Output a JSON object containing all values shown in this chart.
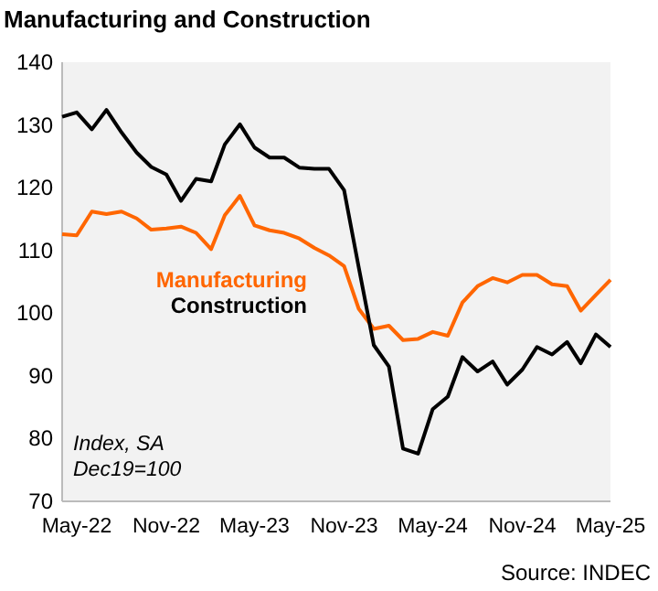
{
  "chart_data": {
    "type": "line",
    "title": "Manufacturing and Construction",
    "x": [
      "2022-04",
      "2022-05",
      "2022-06",
      "2022-07",
      "2022-08",
      "2022-09",
      "2022-10",
      "2022-11",
      "2022-12",
      "2023-01",
      "2023-02",
      "2023-03",
      "2023-04",
      "2023-05",
      "2023-06",
      "2023-07",
      "2023-08",
      "2023-09",
      "2023-10",
      "2023-11",
      "2023-12",
      "2024-01",
      "2024-02",
      "2024-03",
      "2024-04",
      "2024-05",
      "2024-06",
      "2024-07",
      "2024-08",
      "2024-09",
      "2024-10",
      "2024-11",
      "2024-12",
      "2025-01",
      "2025-02",
      "2025-03",
      "2025-04",
      "2025-05"
    ],
    "series": [
      {
        "name": "Manufacturing",
        "color": "#ff6600",
        "values": [
          112.6,
          112.4,
          116.2,
          115.8,
          116.2,
          115.1,
          113.3,
          113.5,
          113.8,
          112.8,
          110.2,
          115.6,
          118.7,
          114.0,
          113.2,
          112.8,
          111.9,
          110.4,
          109.2,
          107.5,
          100.7,
          97.5,
          98.0,
          95.7,
          95.9,
          97.0,
          96.4,
          101.7,
          104.3,
          105.6,
          104.9,
          106.1,
          106.1,
          104.6,
          104.3,
          100.4,
          102.9,
          105.3
        ]
      },
      {
        "name": "Construction",
        "color": "#000000",
        "values": [
          131.3,
          132.0,
          129.3,
          132.4,
          128.8,
          125.6,
          123.3,
          122.1,
          117.9,
          121.4,
          121.0,
          126.9,
          130.1,
          126.4,
          124.8,
          124.8,
          123.2,
          123.0,
          123.0,
          119.6,
          107.3,
          94.9,
          91.5,
          78.4,
          77.6,
          84.7,
          86.7,
          93.0,
          90.7,
          92.3,
          88.6,
          91.0,
          94.6,
          93.4,
          95.4,
          92.0,
          96.6,
          94.6
        ]
      }
    ],
    "xlim": [
      "2022-04",
      "2025-05"
    ],
    "xticks": [
      {
        "value": "2022-05",
        "label": "May-22"
      },
      {
        "value": "2022-11",
        "label": "Nov-22"
      },
      {
        "value": "2023-05",
        "label": "May-23"
      },
      {
        "value": "2023-11",
        "label": "Nov-23"
      },
      {
        "value": "2024-05",
        "label": "May-24"
      },
      {
        "value": "2024-11",
        "label": "Nov-24"
      },
      {
        "value": "2025-05",
        "label": "May-25"
      }
    ],
    "ylim": [
      70,
      140
    ],
    "yticks": [
      70,
      80,
      90,
      100,
      110,
      120,
      130,
      140
    ],
    "grid": false,
    "legend": false,
    "marker": "none",
    "line_style": "solid",
    "annotations": [
      "Index, SA",
      "Dec19=100",
      "Source: INDEC"
    ]
  }
}
